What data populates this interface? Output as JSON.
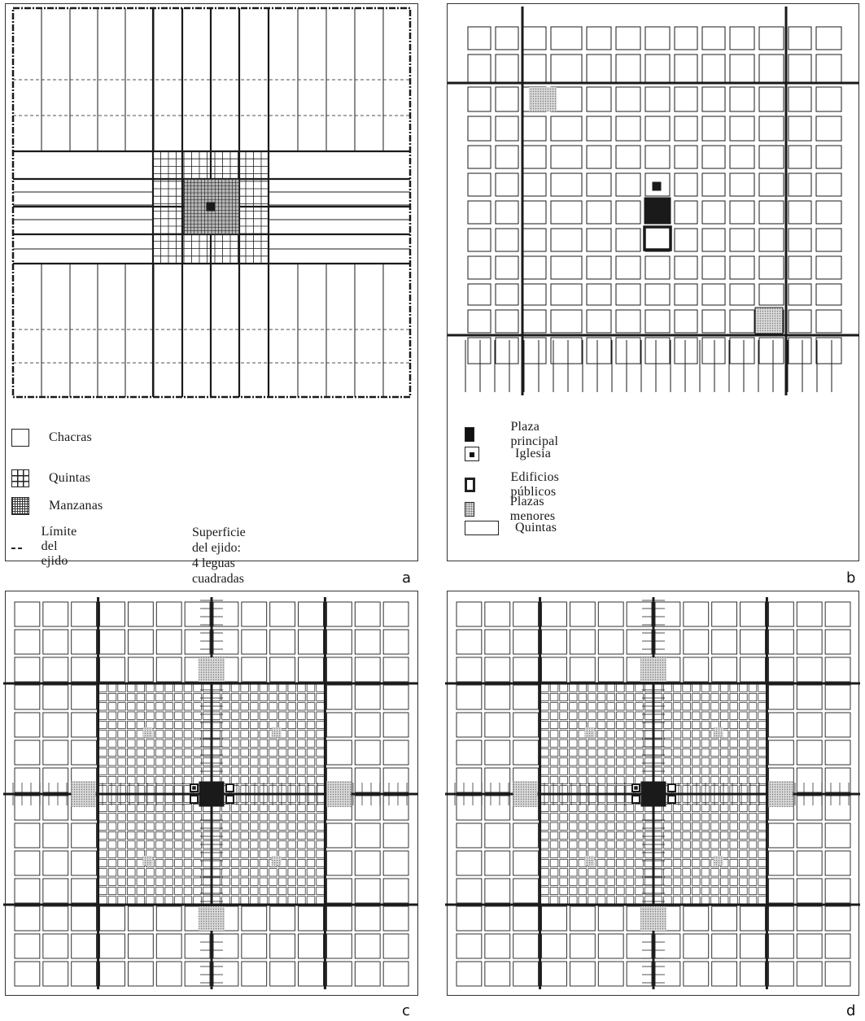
{
  "figure": {
    "panels": [
      {
        "id": "a",
        "letter": "a"
      },
      {
        "id": "b",
        "letter": "b"
      },
      {
        "id": "c",
        "letter": "c"
      },
      {
        "id": "d",
        "letter": "d"
      }
    ]
  },
  "legend_a": {
    "items": [
      {
        "label": "Chacras",
        "icon": "empty-square-icon"
      },
      {
        "label": "Quintas",
        "icon": "grid-square-icon"
      },
      {
        "label": "Manzanas",
        "icon": "dense-grid-square-icon"
      },
      {
        "label": "Límite del ejido",
        "icon": "dashed-line-icon"
      }
    ],
    "note_line1": "Superficie del ejido:",
    "note_line2": "4 leguas cuadradas"
  },
  "legend_b": {
    "items": [
      {
        "label": "Plaza principal",
        "icon": "filled-square-icon"
      },
      {
        "label": "Iglesia",
        "icon": "square-with-dot-icon"
      },
      {
        "label": "Edificios públicos",
        "icon": "bold-outline-square-icon"
      },
      {
        "label": "Plazas menores",
        "icon": "stippled-square-icon"
      },
      {
        "label": "Quintas",
        "icon": "wide-rectangle-icon"
      }
    ]
  },
  "colors": {
    "ink": "#1a1a1a",
    "stipple": "#9a9a9a",
    "paper": "#ffffff"
  }
}
